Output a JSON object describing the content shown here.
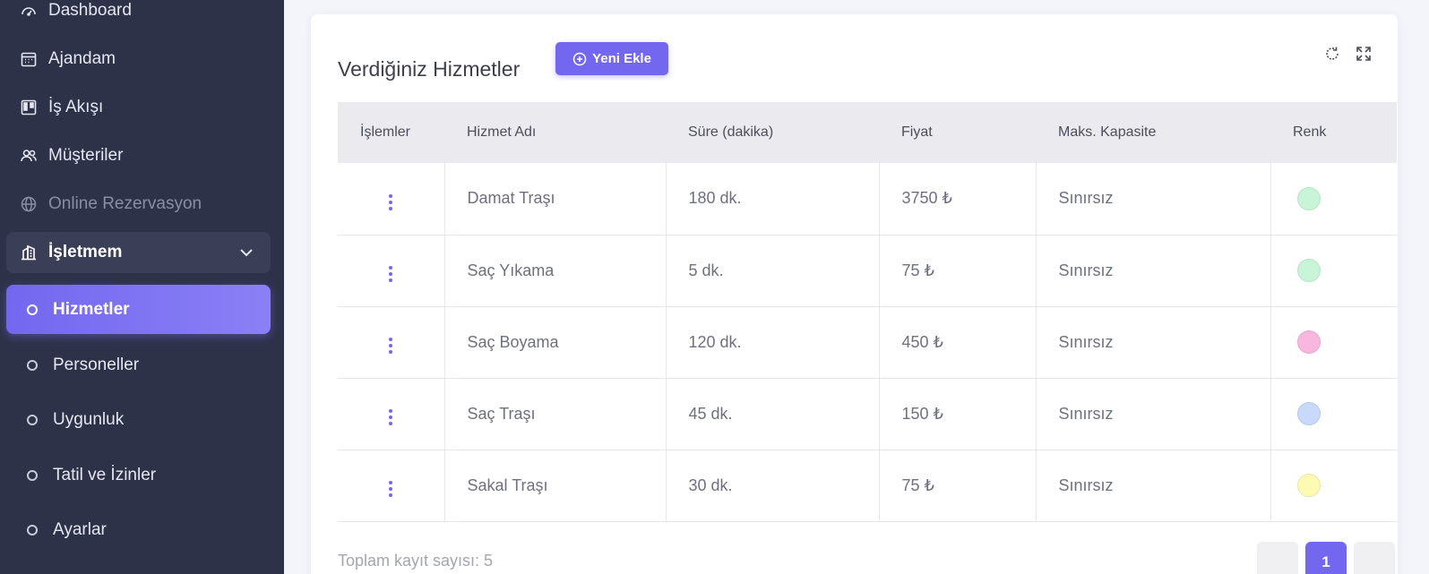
{
  "sidebar": {
    "items": [
      {
        "label": "Dashboard",
        "icon": "dashboard-icon"
      },
      {
        "label": "Ajandam",
        "icon": "calendar-icon"
      },
      {
        "label": "İş Akışı",
        "icon": "kanban-icon"
      },
      {
        "label": "Müşteriler",
        "icon": "users-icon"
      },
      {
        "label": "Online Rezervasyon",
        "icon": "globe-icon"
      },
      {
        "label": "İşletmem",
        "icon": "building-icon"
      }
    ],
    "sub_items": [
      {
        "label": "Hizmetler"
      },
      {
        "label": "Personeller"
      },
      {
        "label": "Uygunluk"
      },
      {
        "label": "Tatil ve İzinler"
      },
      {
        "label": "Ayarlar"
      }
    ]
  },
  "card": {
    "title": "Verdiğiniz Hizmetler",
    "add_button": "Yeni Ekle"
  },
  "table": {
    "headers": [
      "İşlemler",
      "Hizmet Adı",
      "Süre (dakika)",
      "Fiyat",
      "Maks. Kapasite",
      "Renk"
    ],
    "rows": [
      {
        "name": "Damat Traşı",
        "duration": "180 dk.",
        "price": "3750 ₺",
        "capacity": "Sınırsız",
        "color": "#c8f5d8"
      },
      {
        "name": "Saç Yıkama",
        "duration": "5 dk.",
        "price": "75 ₺",
        "capacity": "Sınırsız",
        "color": "#c8f5d8"
      },
      {
        "name": "Saç Boyama",
        "duration": "120 dk.",
        "price": "450 ₺",
        "capacity": "Sınırsız",
        "color": "#f9b6de"
      },
      {
        "name": "Saç Traşı",
        "duration": "45 dk.",
        "price": "150 ₺",
        "capacity": "Sınırsız",
        "color": "#c8d9fb"
      },
      {
        "name": "Sakal Traşı",
        "duration": "30 dk.",
        "price": "75 ₺",
        "capacity": "Sınırsız",
        "color": "#fdfab3"
      }
    ]
  },
  "footer": {
    "total": "Toplam kayıt sayısı: 5",
    "page": "1"
  },
  "colors": {
    "accent": "#7367f0",
    "sidebar": "#2e3249"
  }
}
